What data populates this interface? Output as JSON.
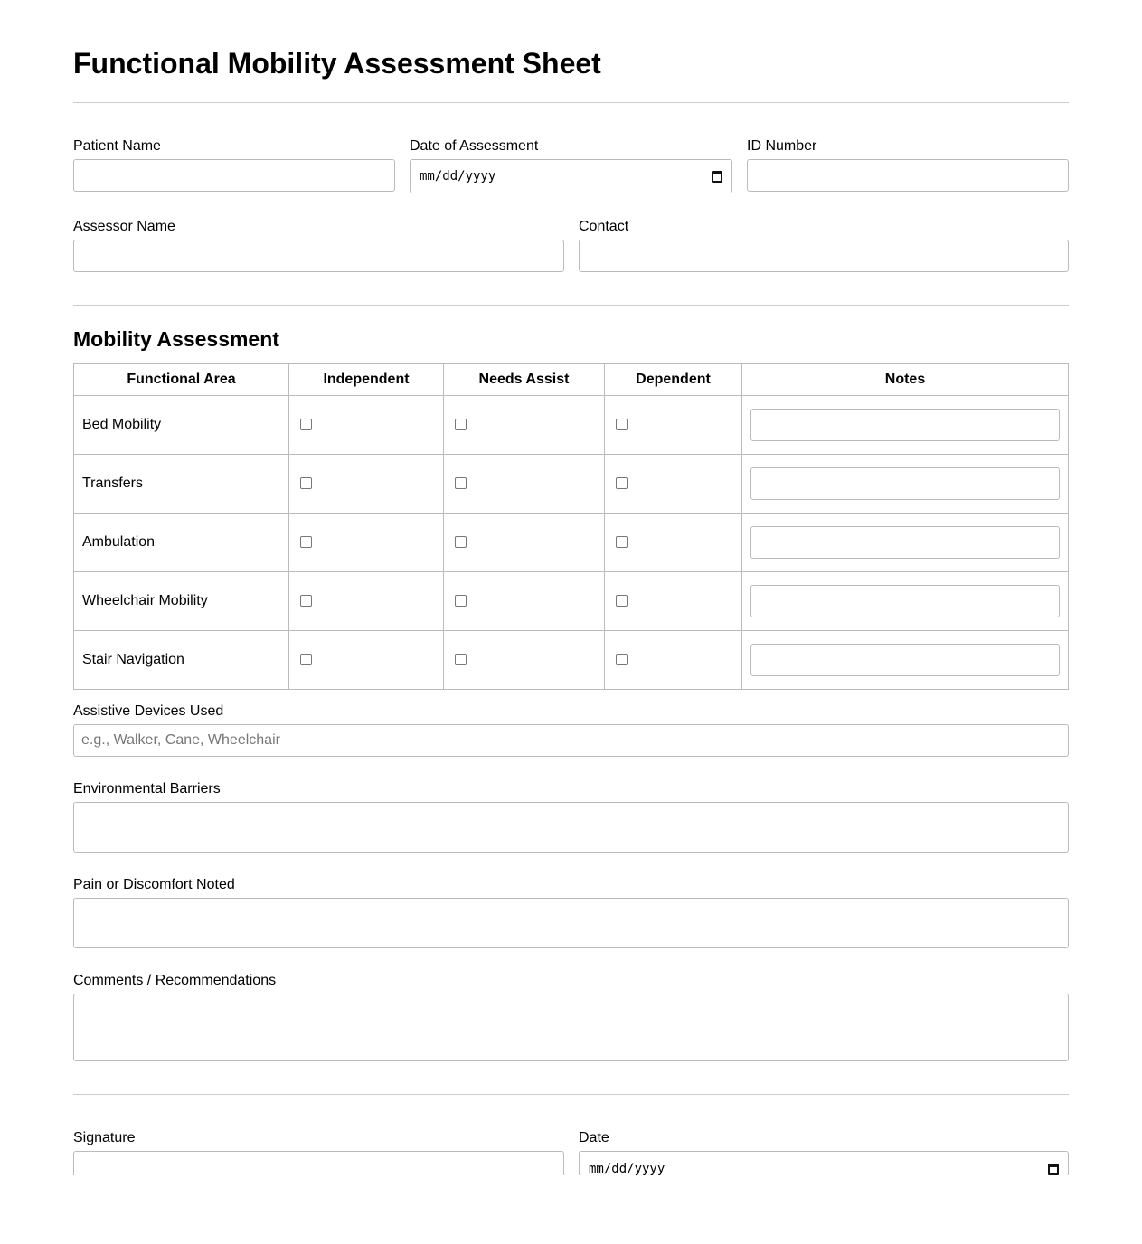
{
  "title": "Functional Mobility Assessment Sheet",
  "fields": {
    "patient_name": "Patient Name",
    "date_of_assessment": "Date of Assessment",
    "id_number": "ID Number",
    "assessor_name": "Assessor Name",
    "contact": "Contact"
  },
  "date_placeholder": "mm/dd/yyyy",
  "section": "Mobility Assessment",
  "table": {
    "headers": [
      "Functional Area",
      "Independent",
      "Needs Assist",
      "Dependent",
      "Notes"
    ],
    "rows": [
      "Bed Mobility",
      "Transfers",
      "Ambulation",
      "Wheelchair Mobility",
      "Stair Navigation"
    ]
  },
  "assistive": {
    "label": "Assistive Devices Used",
    "placeholder": "e.g., Walker, Cane, Wheelchair"
  },
  "environmental": "Environmental Barriers",
  "pain": "Pain or Discomfort Noted",
  "comments": "Comments / Recommendations",
  "signature": "Signature",
  "date": "Date",
  "icons": {
    "date_picker": "calendar-icon"
  }
}
